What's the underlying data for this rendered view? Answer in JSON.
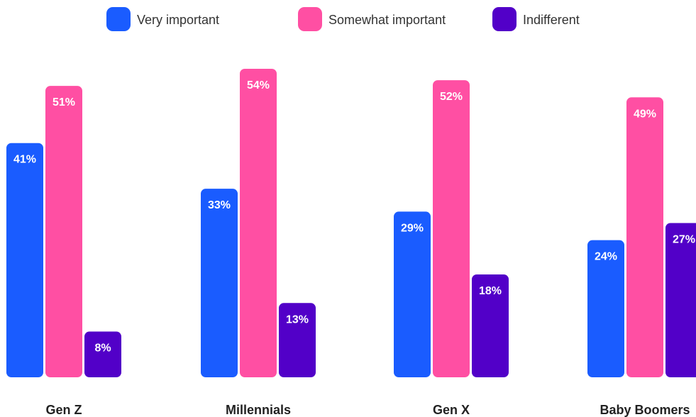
{
  "colors": {
    "very_important": "#1a5cff",
    "somewhat_important": "#ff4fa3",
    "indifferent": "#5200c8"
  },
  "chart_data": {
    "type": "bar",
    "title": "",
    "xlabel": "",
    "ylabel": "",
    "ylim": [
      0,
      54
    ],
    "legend_position": "top",
    "grid": false,
    "categories": [
      "Gen Z",
      "Millennials",
      "Gen X",
      "Baby Boomers"
    ],
    "series": [
      {
        "name": "Very important",
        "values": [
          41,
          33,
          29,
          24
        ],
        "labels": [
          "41%",
          "33%",
          "29%",
          "24%"
        ]
      },
      {
        "name": "Somewhat important",
        "values": [
          51,
          54,
          52,
          49
        ],
        "labels": [
          "51%",
          "54%",
          "52%",
          "49%"
        ]
      },
      {
        "name": "Indifferent",
        "values": [
          8,
          13,
          18,
          27
        ],
        "labels": [
          "8%",
          "13%",
          "18%",
          "27%"
        ]
      }
    ]
  }
}
